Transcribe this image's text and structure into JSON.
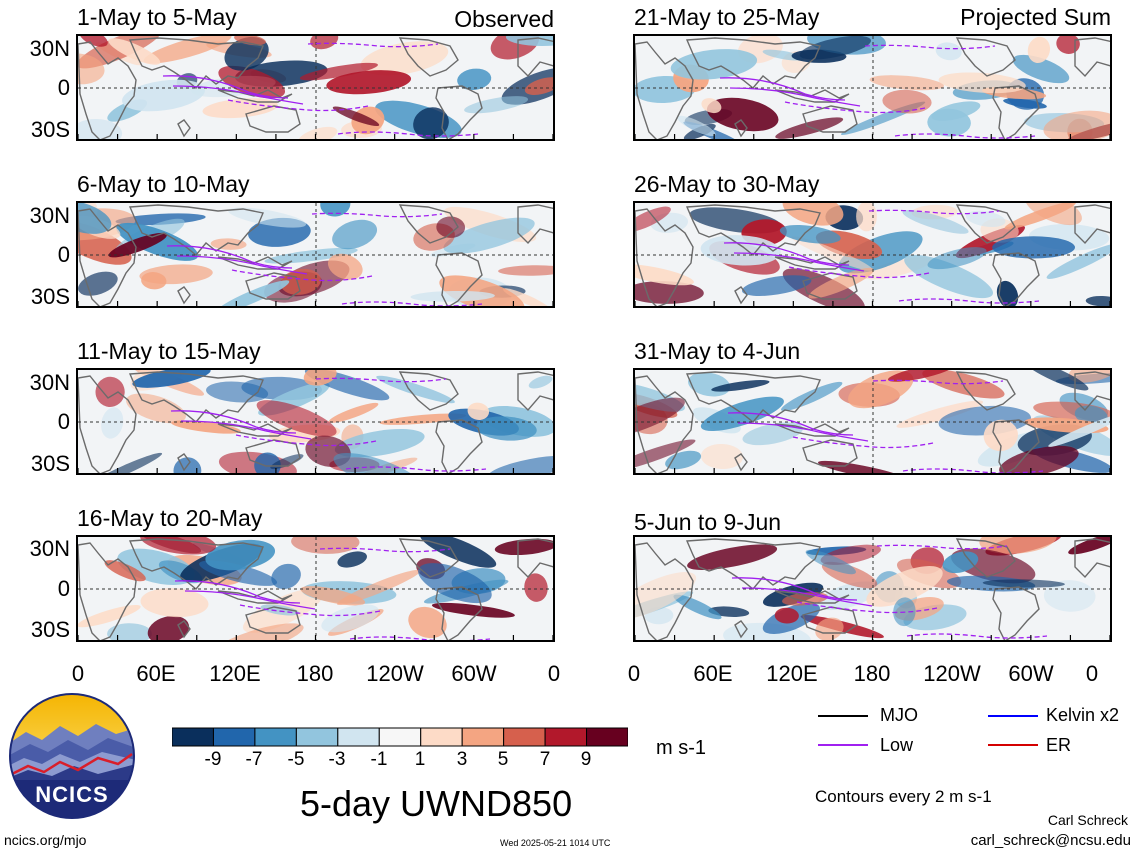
{
  "figure": {
    "title": "5-day UWND850",
    "units": "m s-1",
    "contour_note": "Contours every 2 m s-1",
    "author": "Carl Schreck",
    "email": "carl_schreck@ncsu.edu",
    "website": "ncics.org/mjo",
    "timestamp": "Wed 2025-05-21 1014 UTC",
    "logo_text": "NCICS"
  },
  "columns": {
    "left_tag": "Observed",
    "right_tag": "Projected Sum"
  },
  "panels": [
    {
      "title": "1-May to 5-May"
    },
    {
      "title": "6-May to 10-May"
    },
    {
      "title": "11-May to 15-May"
    },
    {
      "title": "16-May to 20-May"
    },
    {
      "title": "21-May to 25-May"
    },
    {
      "title": "26-May to 30-May"
    },
    {
      "title": "31-May to 4-Jun"
    },
    {
      "title": "5-Jun to 9-Jun"
    }
  ],
  "axes": {
    "lat_ticks": [
      "30N",
      "0",
      "30S"
    ],
    "lon_ticks": [
      "0",
      "60E",
      "120E",
      "180",
      "120W",
      "60W",
      "0"
    ]
  },
  "colorbar": {
    "labels": [
      "-9",
      "-7",
      "-5",
      "-3",
      "-1",
      "1",
      "3",
      "5",
      "7",
      "9"
    ],
    "colors": [
      "#0a2f5c",
      "#2166ac",
      "#4393c3",
      "#92c5de",
      "#d1e5f0",
      "#f7f7f7",
      "#fddbc7",
      "#f4a582",
      "#d6604d",
      "#b2182b",
      "#67001f"
    ]
  },
  "legend": [
    {
      "label": "MJO",
      "color": "#000000",
      "style": "solid"
    },
    {
      "label": "Kelvin x2",
      "color": "#0000ff",
      "style": "solid"
    },
    {
      "label": "Low",
      "color": "#a020f0",
      "style": "solid"
    },
    {
      "label": "ER",
      "color": "#d40000",
      "style": "solid"
    }
  ]
}
